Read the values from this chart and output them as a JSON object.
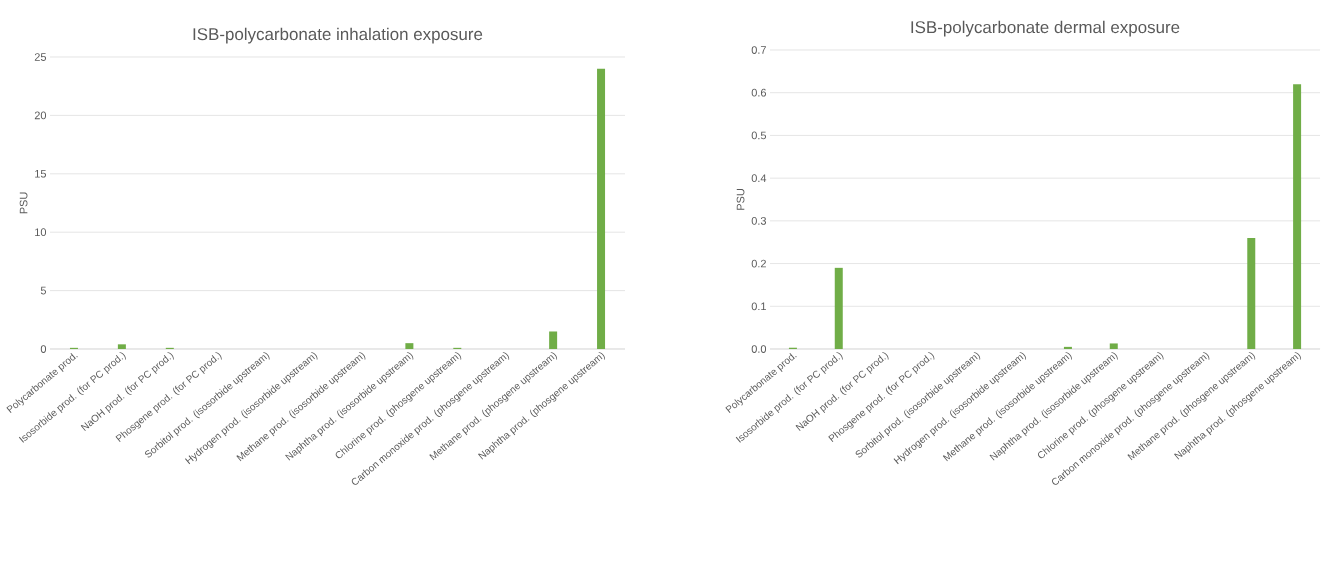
{
  "chart_data": [
    {
      "type": "bar",
      "title": "ISB-polycarbonate inhalation exposure",
      "ylabel": "PSU",
      "categories": [
        "Polycarbonate prod.",
        "Isosorbide prod. (for PC prod.)",
        "NaOH prod. (for PC prod.)",
        "Phosgene prod. (for PC prod.)",
        "Sorbitol prod. (isosorbide upstream)",
        "Hydrogen prod. (isosorbide upstream)",
        "Methane prod. (isosorbide upstream)",
        "Naphtha prod. (isosorbide upstream)",
        "Chlorine prod. (phosgene upstream)",
        "Carbon monoxide prod. (phosgene upstream)",
        "Methane prod. (phosgene upstream)",
        "Naphtha prod. (phosgene upstream)"
      ],
      "values": [
        0.1,
        0.4,
        0.1,
        0,
        0,
        0,
        0,
        0.5,
        0.1,
        0,
        1.5,
        24.0
      ],
      "color": "#70ad47",
      "ylim": [
        0,
        25
      ],
      "yticks": [
        0,
        5,
        10,
        15,
        20,
        25
      ],
      "grid": "y"
    },
    {
      "type": "bar",
      "title": "ISB-polycarbonate dermal exposure",
      "ylabel": "PSU",
      "categories": [
        "Polycarbonate prod.",
        "Isosorbide prod. (for PC prod.)",
        "NaOH prod. (for PC prod.)",
        "Phosgene prod. (for PC prod.)",
        "Sorbitol prod. (isosorbide upstream)",
        "Hydrogen prod. (isosorbide upstream)",
        "Methane prod. (isosorbide upstream)",
        "Naphtha prod. (isosorbide upstream)",
        "Chlorine prod. (phosgene upstream)",
        "Carbon monoxide prod. (phosgene upstream)",
        "Methane prod. (phosgene upstream)",
        "Naphtha prod. (phosgene upstream)"
      ],
      "values": [
        0.003,
        0.19,
        0,
        0,
        0,
        0,
        0.005,
        0.013,
        0,
        0,
        0.26,
        0.62
      ],
      "color": "#70ad47",
      "ylim": [
        0,
        0.7
      ],
      "yticks": [
        {
          "value": 0,
          "label": "0.0"
        },
        0.1,
        0.2,
        0.3,
        0.4,
        0.5,
        0.6,
        0.7
      ],
      "grid": "y"
    }
  ]
}
